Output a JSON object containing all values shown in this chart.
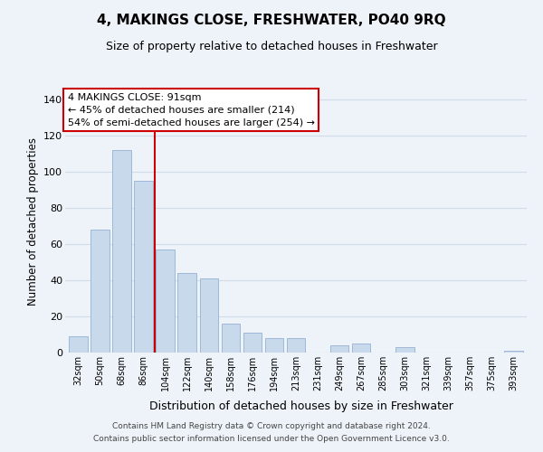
{
  "title": "4, MAKINGS CLOSE, FRESHWATER, PO40 9RQ",
  "subtitle": "Size of property relative to detached houses in Freshwater",
  "xlabel": "Distribution of detached houses by size in Freshwater",
  "ylabel": "Number of detached properties",
  "footnote1": "Contains HM Land Registry data © Crown copyright and database right 2024.",
  "footnote2": "Contains public sector information licensed under the Open Government Licence v3.0.",
  "bar_labels": [
    "32sqm",
    "50sqm",
    "68sqm",
    "86sqm",
    "104sqm",
    "122sqm",
    "140sqm",
    "158sqm",
    "176sqm",
    "194sqm",
    "213sqm",
    "231sqm",
    "249sqm",
    "267sqm",
    "285sqm",
    "303sqm",
    "321sqm",
    "339sqm",
    "357sqm",
    "375sqm",
    "393sqm"
  ],
  "bar_values": [
    9,
    68,
    112,
    95,
    57,
    44,
    41,
    16,
    11,
    8,
    8,
    0,
    4,
    5,
    0,
    3,
    0,
    0,
    0,
    0,
    1
  ],
  "bar_color": "#c9d9ec",
  "bar_edge_color": "#a0b8d8",
  "grid_color": "#d0dce8",
  "background_color": "#eef3f9",
  "vline_color": "#cc0000",
  "annotation_title": "4 MAKINGS CLOSE: 91sqm",
  "annotation_line1": "← 45% of detached houses are smaller (214)",
  "annotation_line2": "54% of semi-detached houses are larger (254) →",
  "annotation_box_color": "#ffffff",
  "annotation_box_edge": "#cc0000",
  "ylim": [
    0,
    145
  ],
  "yticks": [
    0,
    20,
    40,
    60,
    80,
    100,
    120,
    140
  ]
}
